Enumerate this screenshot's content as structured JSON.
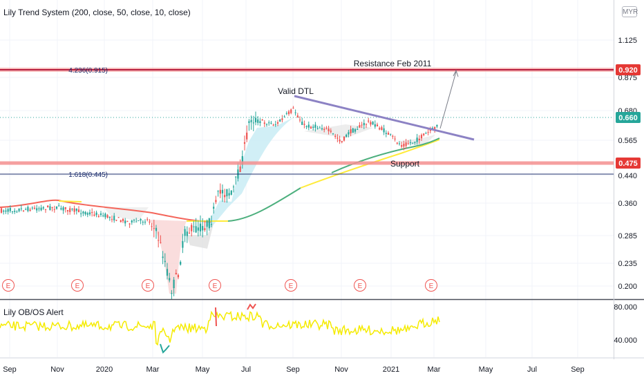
{
  "studies": {
    "main": "Lily Trend System (200, close, 50, close, 10, close)",
    "sub": "Lily OB/OS Alert"
  },
  "currency": "MYR",
  "price_axis": {
    "ticks": [
      "1.125",
      "0.875",
      "0.680",
      "0.565",
      "0.440",
      "0.360",
      "0.285",
      "0.235",
      "0.200"
    ],
    "badges": [
      {
        "text": "0.920",
        "color": "#e53935"
      },
      {
        "text": "0.660",
        "color": "#26a69a"
      },
      {
        "text": "0.475",
        "color": "#e53935"
      }
    ]
  },
  "osc_axis": {
    "ticks": [
      "80.000",
      "40.000"
    ]
  },
  "time_axis": [
    "Sep",
    "Nov",
    "2020",
    "Mar",
    "May",
    "Jul",
    "Sep",
    "Nov",
    "2021",
    "Mar",
    "May",
    "Jul",
    "Sep"
  ],
  "annotations": {
    "resistance": "Resistance Feb 2011",
    "valid_dtl": "Valid DTL",
    "support": "Support",
    "fib_upper": "4.236(0.915)",
    "fib_lower": "1.618(0.445)"
  },
  "earnings_marker": "E",
  "colors": {
    "resistance_line": "#b71c3c",
    "support_band": "#f48f8f",
    "trendline": "#8c82c4",
    "fib_line": "#1a2b6b",
    "candle_up": "#26a69a",
    "candle_down": "#ef5350",
    "ma_fast_up": "#ffeb3b",
    "ma_slow_green": "#4caf7d",
    "ma_slow_red": "#f4655a",
    "oscillator": "#f5eb00"
  }
}
